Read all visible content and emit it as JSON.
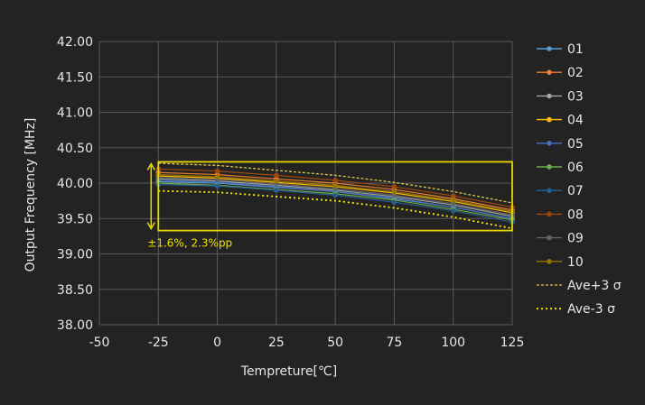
{
  "chart_data": {
    "type": "line",
    "title": "",
    "xlabel": "Tempreture[℃]",
    "ylabel": "Output Frequency [MHz]",
    "xlim": [
      -50,
      125
    ],
    "ylim": [
      38.0,
      42.0
    ],
    "x_ticks": [
      "-50",
      "-25",
      "0",
      "25",
      "50",
      "75",
      "100",
      "125"
    ],
    "y_ticks": [
      "38.00",
      "38.50",
      "39.00",
      "39.50",
      "40.00",
      "40.50",
      "41.00",
      "41.50",
      "42.00"
    ],
    "grid": true,
    "legend_position": "right",
    "x": [
      -25,
      0,
      25,
      50,
      75,
      100,
      125
    ],
    "series": [
      {
        "name": "01",
        "color": "#5b9bd5",
        "values": [
          40.02,
          40.0,
          39.94,
          39.88,
          39.78,
          39.66,
          39.5
        ]
      },
      {
        "name": "02",
        "color": "#ed7d31",
        "values": [
          40.15,
          40.12,
          40.06,
          40.0,
          39.91,
          39.78,
          39.62
        ]
      },
      {
        "name": "03",
        "color": "#a5a5a5",
        "values": [
          40.06,
          40.03,
          39.97,
          39.9,
          39.81,
          39.69,
          39.53
        ]
      },
      {
        "name": "04",
        "color": "#ffc000",
        "values": [
          40.1,
          40.07,
          40.01,
          39.95,
          39.86,
          39.74,
          39.58
        ]
      },
      {
        "name": "05",
        "color": "#4472c4",
        "values": [
          40.04,
          40.01,
          39.95,
          39.88,
          39.79,
          39.66,
          39.5
        ]
      },
      {
        "name": "06",
        "color": "#70ad47",
        "values": [
          40.0,
          39.97,
          39.91,
          39.85,
          39.76,
          39.63,
          39.48
        ]
      },
      {
        "name": "07",
        "color": "#255e91",
        "values": [
          39.98,
          39.96,
          39.9,
          39.83,
          39.73,
          39.61,
          39.45
        ]
      },
      {
        "name": "08",
        "color": "#9e480e",
        "values": [
          40.2,
          40.17,
          40.11,
          40.04,
          39.95,
          39.82,
          39.66
        ]
      },
      {
        "name": "09",
        "color": "#636363",
        "values": [
          40.08,
          40.05,
          39.99,
          39.92,
          39.83,
          39.71,
          39.55
        ]
      },
      {
        "name": "10",
        "color": "#997300",
        "values": [
          40.12,
          40.09,
          40.03,
          39.97,
          39.88,
          39.76,
          39.6
        ]
      }
    ],
    "bands": [
      {
        "name": "Ave+3σ",
        "label": "Ave+3 σ",
        "color": "#d9c84a",
        "values": [
          40.28,
          40.25,
          40.18,
          40.11,
          40.01,
          39.88,
          39.72
        ]
      },
      {
        "name": "Ave-3σ",
        "label": "Ave-3 σ",
        "color": "#f5f000",
        "values": [
          39.89,
          39.87,
          39.81,
          39.75,
          39.65,
          39.52,
          39.36
        ]
      }
    ],
    "annotation": {
      "text": "±1.6%, 2.3%pp",
      "box_x": [
        -25,
        125
      ],
      "box_y": [
        39.33,
        40.3
      ],
      "color": "#e8d800"
    }
  }
}
